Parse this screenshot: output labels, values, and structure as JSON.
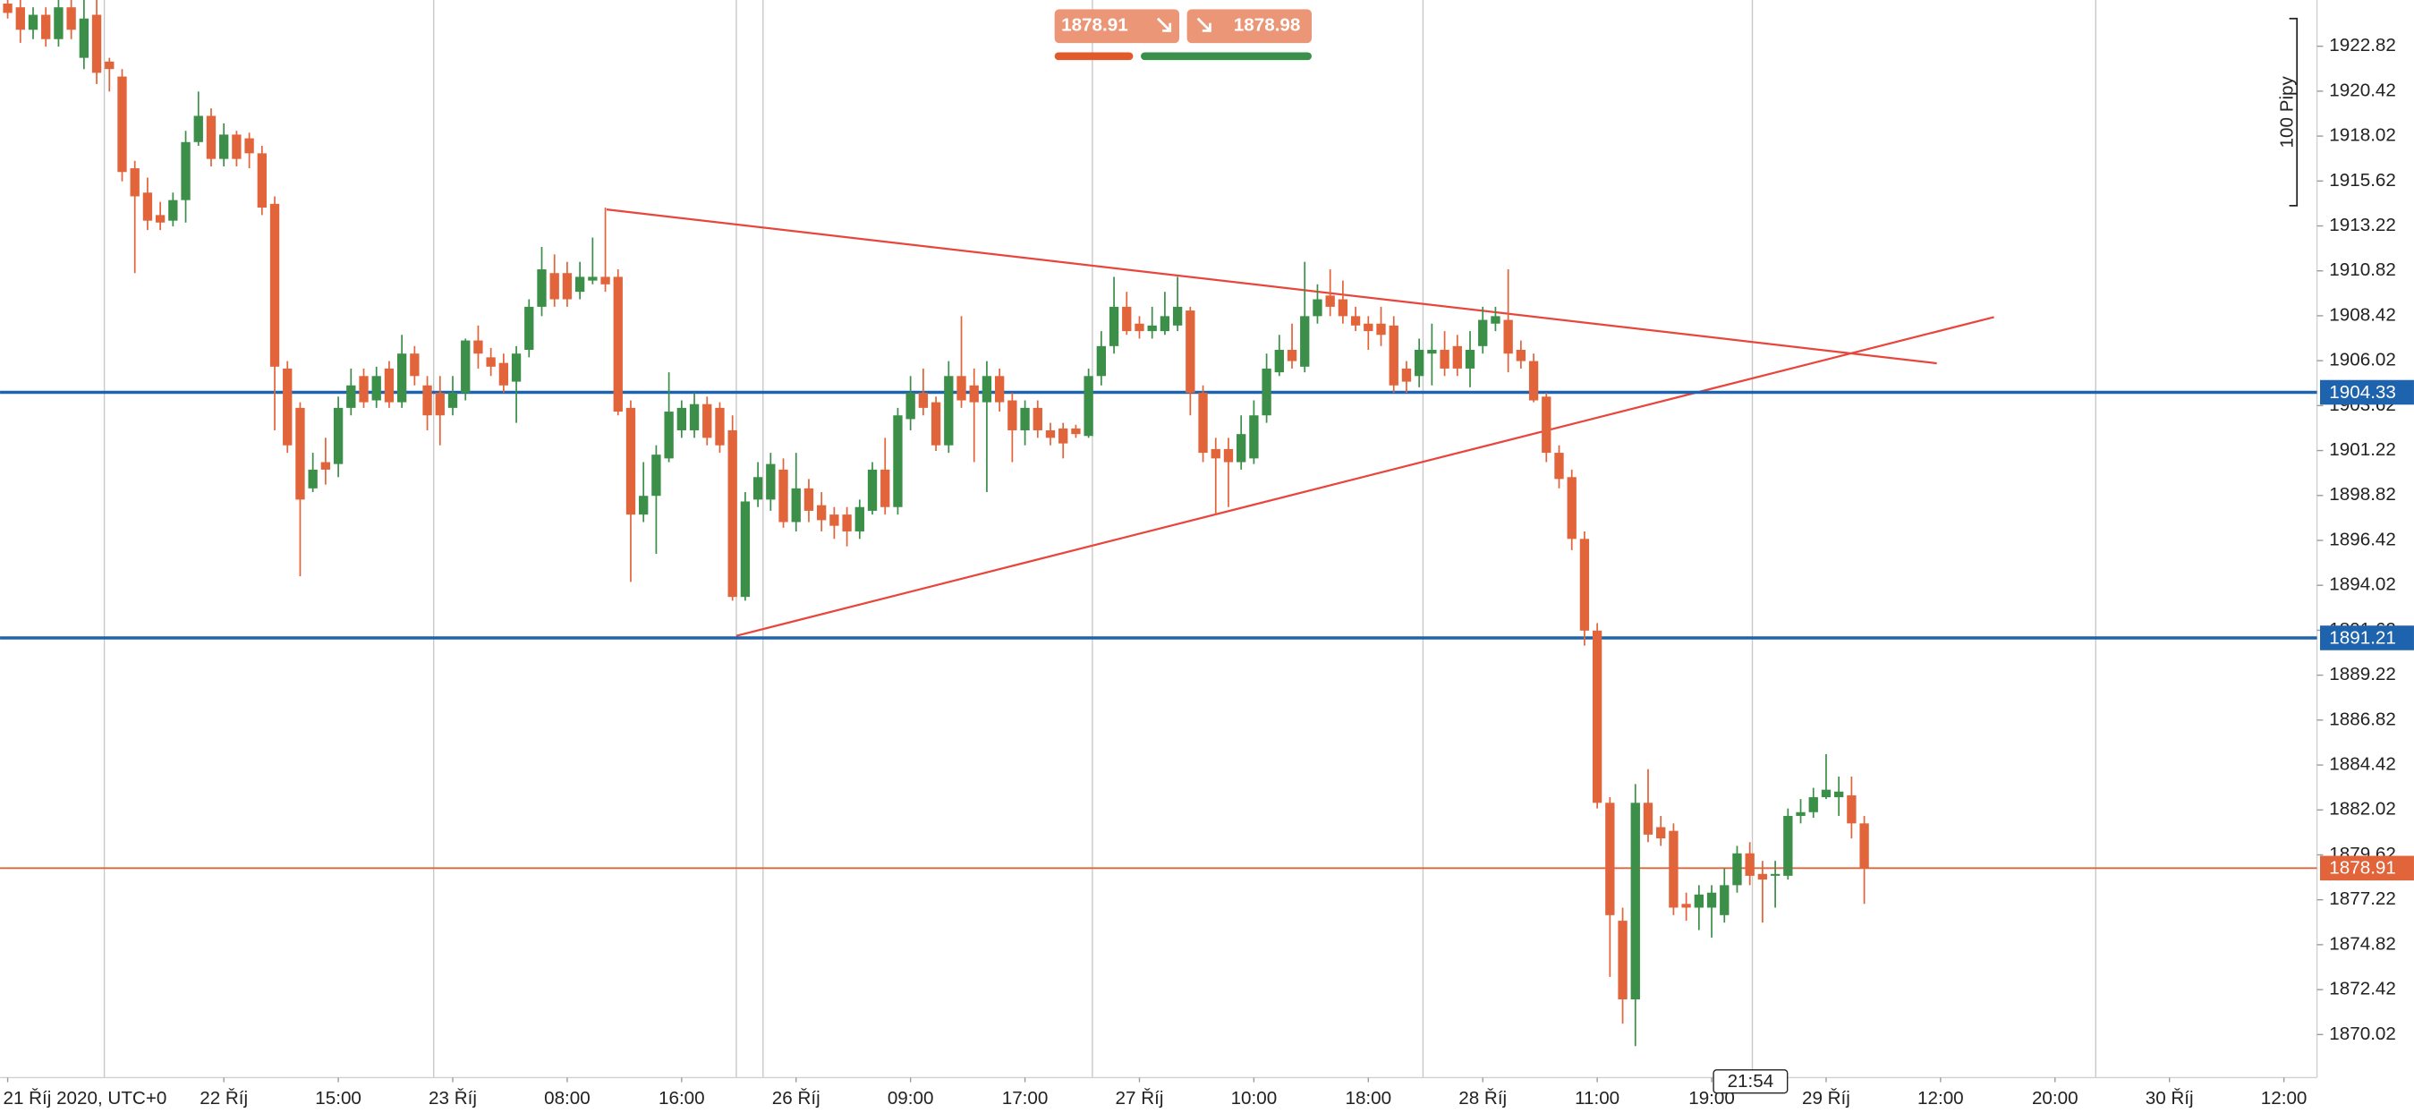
{
  "chart_data": {
    "type": "candlestick",
    "xlim": [
      -0.6,
      181.6
    ],
    "ylim": [
      1867.72,
      1925.29
    ],
    "xticks": [
      {
        "value": 0,
        "label": "21 Říj 2020, UTC+0"
      },
      {
        "value": 17,
        "label": "22 Říj"
      },
      {
        "value": 26,
        "label": "15:00"
      },
      {
        "value": 35,
        "label": "23 Říj"
      },
      {
        "value": 44,
        "label": "08:00"
      },
      {
        "value": 53,
        "label": "16:00"
      },
      {
        "value": 62,
        "label": "26 Říj"
      },
      {
        "value": 71,
        "label": "09:00"
      },
      {
        "value": 80,
        "label": "17:00"
      },
      {
        "value": 89,
        "label": "27 Říj"
      },
      {
        "value": 98,
        "label": "10:00"
      },
      {
        "value": 107,
        "label": "18:00"
      },
      {
        "value": 116,
        "label": "28 Říj"
      },
      {
        "value": 125,
        "label": "11:00"
      },
      {
        "value": 134,
        "label": "19:00"
      },
      {
        "value": 143,
        "label": "29 Říj"
      },
      {
        "value": 152,
        "label": "12:00"
      },
      {
        "value": 161,
        "label": "20:00"
      },
      {
        "value": 170,
        "label": "30 Říj"
      },
      {
        "value": 179,
        "label": "12:00"
      }
    ],
    "yticks": [
      1922.82,
      1920.42,
      1918.02,
      1915.62,
      1913.22,
      1910.82,
      1908.42,
      1906.02,
      1903.62,
      1901.22,
      1898.82,
      1896.42,
      1894.02,
      1891.62,
      1889.22,
      1886.82,
      1884.42,
      1882.02,
      1879.62,
      1877.22,
      1874.82,
      1872.42,
      1870.02
    ],
    "xgrid": [
      7.6,
      33.5,
      57.3,
      59.4,
      85.3,
      111.3,
      137.2,
      164.2
    ],
    "up_color": "#3b8f49",
    "down_color": "#e2643a",
    "open": [
      1925.1,
      1924.9,
      1923.7,
      1924.5,
      1923.2,
      1924.9,
      1922.2,
      1924.5,
      1922.0,
      1921.2,
      1916.3,
      1915.0,
      1913.8,
      1913.5,
      1914.6,
      1917.7,
      1919.1,
      1916.8,
      1918.1,
      1917.9,
      1917.1,
      1914.4,
      1905.6,
      1903.5,
      1899.2,
      1900.6,
      1900.5,
      1903.5,
      1905.2,
      1903.9,
      1905.6,
      1903.8,
      1906.4,
      1904.7,
      1904.3,
      1903.5,
      1904.3,
      1907.1,
      1906.2,
      1905.9,
      1904.9,
      1906.6,
      1908.9,
      1910.7,
      1910.7,
      1909.7,
      1910.3,
      1910.5,
      1910.5,
      1903.5,
      1897.8,
      1898.8,
      1900.8,
      1902.3,
      1902.3,
      1903.7,
      1903.5,
      1902.3,
      1893.4,
      1898.6,
      1898.6,
      1900.2,
      1897.4,
      1899.2,
      1898.3,
      1897.8,
      1897.8,
      1896.9,
      1898.0,
      1900.2,
      1898.2,
      1902.9,
      1904.3,
      1903.8,
      1901.5,
      1905.2,
      1904.7,
      1903.8,
      1905.2,
      1903.9,
      1902.3,
      1903.5,
      1902.3,
      1902.4,
      1902.4,
      1902.0,
      1905.2,
      1906.8,
      1908.9,
      1908.0,
      1907.6,
      1907.6,
      1907.9,
      1908.7,
      1904.3,
      1901.3,
      1901.3,
      1900.6,
      1900.8,
      1903.1,
      1905.4,
      1906.6,
      1905.7,
      1908.4,
      1909.5,
      1909.3,
      1908.4,
      1908.0,
      1908.0,
      1907.9,
      1905.6,
      1905.2,
      1906.4,
      1906.6,
      1906.8,
      1905.6,
      1906.8,
      1908.0,
      1908.2,
      1906.6,
      1906.0,
      1904.1,
      1901.1,
      1899.8,
      1896.5,
      1891.6,
      1882.4,
      1876.1,
      1871.9,
      1882.4,
      1881.1,
      1880.9,
      1877.0,
      1876.8,
      1876.8,
      1876.4,
      1878.0,
      1879.7,
      1878.6,
      1878.5,
      1878.5,
      1881.7,
      1881.9,
      1882.7,
      1882.7,
      1882.8,
      1881.3
    ],
    "high": [
      1925.3,
      1925.3,
      1924.9,
      1924.9,
      1925.3,
      1925.3,
      1925.3,
      1925.3,
      1922.2,
      1921.6,
      1916.7,
      1915.8,
      1914.5,
      1915.0,
      1918.3,
      1920.4,
      1919.5,
      1918.7,
      1918.3,
      1918.2,
      1917.5,
      1914.8,
      1906.0,
      1903.8,
      1901.1,
      1901.9,
      1904.1,
      1905.6,
      1905.6,
      1905.7,
      1906.0,
      1907.4,
      1906.8,
      1905.2,
      1905.2,
      1905.2,
      1907.2,
      1907.9,
      1906.7,
      1906.4,
      1906.8,
      1909.3,
      1912.1,
      1911.7,
      1911.3,
      1911.3,
      1912.6,
      1914.2,
      1910.9,
      1903.9,
      1900.6,
      1901.5,
      1905.4,
      1903.9,
      1904.3,
      1904.1,
      1903.8,
      1903.1,
      1899.0,
      1900.6,
      1901.1,
      1900.8,
      1901.1,
      1899.7,
      1899.0,
      1898.2,
      1898.2,
      1898.6,
      1900.6,
      1901.9,
      1903.5,
      1905.2,
      1905.6,
      1904.1,
      1906.0,
      1908.4,
      1905.6,
      1906.0,
      1905.6,
      1904.3,
      1903.9,
      1903.9,
      1902.7,
      1902.7,
      1902.6,
      1905.6,
      1907.6,
      1910.5,
      1909.7,
      1908.4,
      1908.9,
      1909.7,
      1910.5,
      1908.9,
      1904.7,
      1901.9,
      1901.9,
      1903.1,
      1903.9,
      1906.4,
      1907.4,
      1908.0,
      1911.3,
      1910.1,
      1910.9,
      1910.3,
      1908.9,
      1908.4,
      1908.9,
      1908.4,
      1906.0,
      1907.2,
      1908.0,
      1907.6,
      1907.4,
      1907.6,
      1908.9,
      1908.9,
      1910.9,
      1907.1,
      1906.4,
      1904.3,
      1901.5,
      1900.2,
      1896.9,
      1892.0,
      1882.7,
      1876.8,
      1883.4,
      1884.2,
      1881.7,
      1881.3,
      1877.6,
      1878.0,
      1878.0,
      1878.9,
      1880.1,
      1880.3,
      1879.3,
      1879.3,
      1882.1,
      1882.6,
      1883.2,
      1885.0,
      1883.8,
      1883.8,
      1881.7
    ],
    "low": [
      1924.3,
      1923.0,
      1923.2,
      1922.8,
      1922.8,
      1923.2,
      1921.6,
      1920.8,
      1920.4,
      1915.6,
      1910.7,
      1913.0,
      1913.0,
      1913.2,
      1913.4,
      1917.5,
      1916.4,
      1916.4,
      1916.4,
      1916.3,
      1913.8,
      1902.3,
      1901.1,
      1894.5,
      1899.0,
      1899.4,
      1899.8,
      1903.1,
      1903.5,
      1903.5,
      1903.5,
      1903.5,
      1904.7,
      1902.3,
      1901.5,
      1903.1,
      1903.9,
      1905.6,
      1905.2,
      1904.3,
      1902.7,
      1906.2,
      1908.4,
      1908.9,
      1908.9,
      1909.3,
      1910.1,
      1909.7,
      1903.1,
      1894.2,
      1897.4,
      1895.7,
      1900.6,
      1901.9,
      1901.9,
      1901.5,
      1901.1,
      1893.2,
      1893.2,
      1898.2,
      1898.0,
      1897.1,
      1896.9,
      1897.4,
      1896.9,
      1896.5,
      1896.1,
      1896.5,
      1897.8,
      1897.8,
      1897.8,
      1902.3,
      1903.1,
      1901.2,
      1901.1,
      1903.5,
      1900.6,
      1899.0,
      1903.3,
      1900.6,
      1901.5,
      1901.9,
      1901.5,
      1900.8,
      1901.9,
      1901.9,
      1904.7,
      1906.4,
      1907.4,
      1907.2,
      1907.2,
      1907.4,
      1907.6,
      1903.1,
      1900.6,
      1897.8,
      1898.2,
      1900.2,
      1900.5,
      1902.7,
      1905.2,
      1905.6,
      1905.4,
      1908.0,
      1908.4,
      1908.0,
      1907.6,
      1906.6,
      1906.8,
      1904.3,
      1904.3,
      1904.6,
      1904.7,
      1905.2,
      1905.2,
      1904.6,
      1906.4,
      1907.6,
      1905.4,
      1905.6,
      1903.8,
      1900.6,
      1899.2,
      1895.9,
      1890.8,
      1882.1,
      1873.1,
      1870.6,
      1869.4,
      1880.3,
      1880.1,
      1876.4,
      1876.1,
      1875.6,
      1875.2,
      1876.0,
      1877.6,
      1878.0,
      1876.0,
      1876.8,
      1878.3,
      1881.3,
      1881.6,
      1882.6,
      1881.7,
      1880.5,
      1877.0
    ],
    "close": [
      1924.6,
      1923.7,
      1924.5,
      1923.2,
      1924.9,
      1923.7,
      1924.3,
      1921.4,
      1921.6,
      1916.1,
      1914.8,
      1913.5,
      1913.4,
      1914.6,
      1917.7,
      1919.1,
      1916.8,
      1918.1,
      1916.8,
      1917.1,
      1914.2,
      1905.7,
      1901.5,
      1898.6,
      1900.2,
      1900.2,
      1903.5,
      1904.7,
      1903.8,
      1905.2,
      1903.8,
      1906.4,
      1905.2,
      1903.1,
      1903.1,
      1904.3,
      1907.1,
      1906.4,
      1905.7,
      1904.7,
      1906.4,
      1908.9,
      1910.9,
      1909.3,
      1909.3,
      1910.5,
      1910.5,
      1910.1,
      1903.3,
      1897.8,
      1898.8,
      1901.0,
      1903.3,
      1903.5,
      1903.7,
      1901.9,
      1901.5,
      1893.4,
      1898.5,
      1899.8,
      1900.5,
      1897.4,
      1899.2,
      1898.0,
      1897.5,
      1897.2,
      1896.9,
      1898.2,
      1900.2,
      1898.2,
      1903.1,
      1904.3,
      1903.5,
      1901.5,
      1905.2,
      1903.9,
      1903.8,
      1905.2,
      1903.8,
      1902.3,
      1903.5,
      1902.3,
      1901.9,
      1901.6,
      1902.1,
      1905.2,
      1906.8,
      1908.9,
      1907.6,
      1907.6,
      1907.9,
      1908.4,
      1908.9,
      1904.3,
      1901.1,
      1900.8,
      1900.6,
      1902.1,
      1903.1,
      1905.6,
      1906.6,
      1906.0,
      1908.4,
      1909.3,
      1908.9,
      1908.4,
      1907.9,
      1907.6,
      1907.4,
      1904.7,
      1904.9,
      1906.6,
      1906.6,
      1905.6,
      1905.6,
      1906.6,
      1908.2,
      1908.4,
      1906.4,
      1906.0,
      1903.9,
      1901.1,
      1899.7,
      1896.5,
      1891.6,
      1882.4,
      1876.4,
      1871.9,
      1882.4,
      1880.7,
      1880.5,
      1876.8,
      1876.8,
      1877.5,
      1877.6,
      1878.0,
      1879.7,
      1878.5,
      1878.3,
      1878.6,
      1881.7,
      1881.9,
      1882.7,
      1883.1,
      1883.0,
      1881.3,
      1878.91
    ],
    "hlines": [
      {
        "value": 1904.33,
        "color": "#1e63ad"
      },
      {
        "value": 1891.21,
        "color": "#1e63ad"
      },
      {
        "value": 1878.91,
        "color": "#e2643a"
      }
    ],
    "trendlines": [
      {
        "x": [
          47.1,
          151.7
        ],
        "y": [
          1914.1,
          1905.88
        ],
        "color": "#e8463c"
      },
      {
        "x": [
          57.3,
          156.2
        ],
        "y": [
          1891.32,
          1908.35
        ],
        "color": "#e8463c"
      }
    ],
    "ruler": {
      "label": "100 Pipy",
      "range": [
        1914.3,
        1924.3
      ]
    },
    "crosshair": {
      "x": 137.05,
      "label": "21:54"
    },
    "trade_panel": {
      "sell": 1878.91,
      "buy": 1878.98
    }
  }
}
